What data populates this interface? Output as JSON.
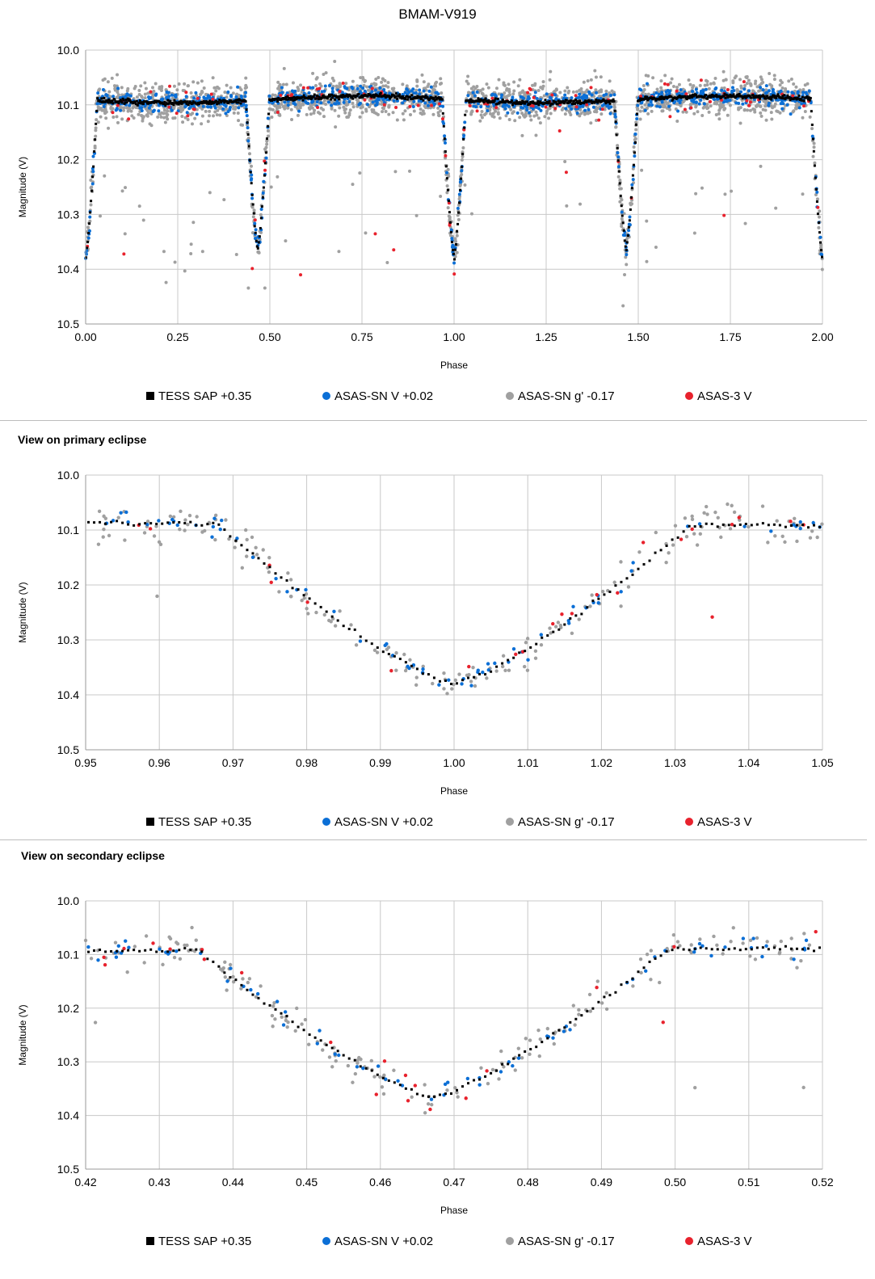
{
  "page_title": "BMAM-V919",
  "section_titles": [
    "",
    "View on primary eclipse",
    "View on secondary eclipse"
  ],
  "colors": {
    "TESS": "#000000",
    "ASASSN_V": "#0b6fd6",
    "ASASSN_g": "#a0a0a0",
    "ASAS3": "#e8222d",
    "grid": "#c8c8c8",
    "axis": "#9a9a9a"
  },
  "chart_data": [
    {
      "type": "scatter",
      "title": "BMAM-V919",
      "xlabel": "Phase",
      "ylabel": "Magnitude (V)",
      "xlim": [
        0.0,
        2.0
      ],
      "ylim": [
        10.0,
        10.5
      ],
      "y_reversed": true,
      "xticks": [
        "0.00",
        "0.25",
        "0.50",
        "0.75",
        "1.00",
        "1.25",
        "1.50",
        "1.75",
        "2.00"
      ],
      "yticks": [
        "10.0",
        "10.1",
        "10.2",
        "10.3",
        "10.4",
        "10.5"
      ],
      "grid": true,
      "legend_position": "bottom",
      "legend": [
        "TESS SAP +0.35",
        "ASAS-SN V +0.02",
        "ASAS-SN g' -0.17",
        "ASAS-3 V"
      ],
      "light_curve": {
        "period_in_phase": 1.0,
        "max_brightness_mag": 10.09,
        "primary_eclipse": {
          "phase": 0.0,
          "min_mag": 10.38,
          "half_width_phase": 0.032
        },
        "secondary_eclipse": {
          "phase": 0.467,
          "min_mag": 10.365,
          "half_width_phase": 0.032
        }
      },
      "series": [
        {
          "name": "TESS SAP +0.35",
          "marker": "square",
          "offset": 0.35
        },
        {
          "name": "ASAS-SN V +0.02",
          "marker": "circle",
          "offset": 0.02
        },
        {
          "name": "ASAS-SN g' -0.17",
          "marker": "circle",
          "offset": -0.17
        },
        {
          "name": "ASAS-3 V",
          "marker": "circle",
          "offset": 0
        }
      ]
    },
    {
      "type": "scatter",
      "title": "View on primary eclipse",
      "xlabel": "Phase",
      "ylabel": "Magnitude (V)",
      "xlim": [
        0.95,
        1.05
      ],
      "ylim": [
        10.0,
        10.5
      ],
      "y_reversed": true,
      "xticks": [
        "0.95",
        "0.96",
        "0.97",
        "0.98",
        "0.99",
        "1.00",
        "1.01",
        "1.02",
        "1.03",
        "1.04",
        "1.05"
      ],
      "yticks": [
        "10.0",
        "10.1",
        "10.2",
        "10.3",
        "10.4",
        "10.5"
      ],
      "grid": true,
      "legend_position": "bottom",
      "legend": [
        "TESS SAP +0.35",
        "ASAS-SN V +0.02",
        "ASAS-SN g' -0.17",
        "ASAS-3 V"
      ]
    },
    {
      "type": "scatter",
      "title": "View on secondary eclipse",
      "xlabel": "Phase",
      "ylabel": "Magnitude (V)",
      "xlim": [
        0.42,
        0.52
      ],
      "ylim": [
        10.0,
        10.5
      ],
      "y_reversed": true,
      "xticks": [
        "0.42",
        "0.43",
        "0.44",
        "0.45",
        "0.46",
        "0.47",
        "0.48",
        "0.49",
        "0.50",
        "0.51",
        "0.52"
      ],
      "yticks": [
        "10.0",
        "10.1",
        "10.2",
        "10.3",
        "10.4",
        "10.5"
      ],
      "grid": true,
      "legend_position": "bottom",
      "legend": [
        "TESS SAP +0.35",
        "ASAS-SN V +0.02",
        "ASAS-SN g' -0.17",
        "ASAS-3 V"
      ]
    }
  ]
}
